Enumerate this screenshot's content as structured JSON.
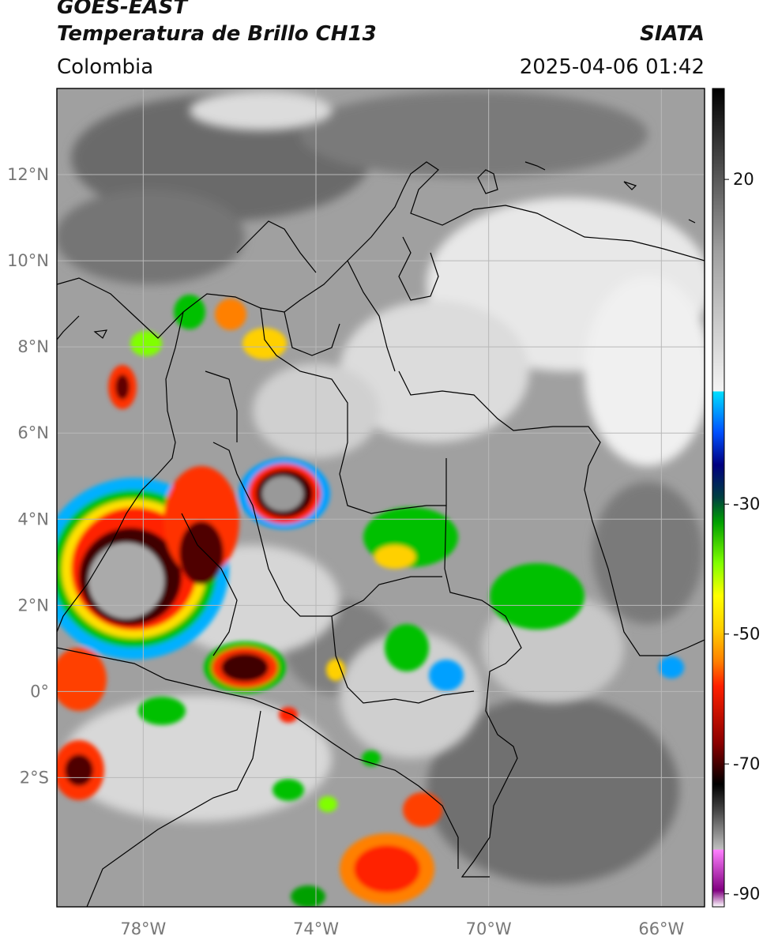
{
  "header": {
    "satellite": "GOES-EAST",
    "product": "Temperatura de Brillo CH13",
    "region": "Colombia",
    "organization": "SIATA",
    "timestamp": "2025-04-06 01:42"
  },
  "map": {
    "lon_range": [
      -80,
      -65
    ],
    "lat_range": [
      -5,
      14
    ],
    "lon_ticks": [
      {
        "value": -78,
        "label": "78°W"
      },
      {
        "value": -74,
        "label": "74°W"
      },
      {
        "value": -70,
        "label": "70°W"
      },
      {
        "value": -66,
        "label": "66°W"
      }
    ],
    "lat_ticks": [
      {
        "value": 12,
        "label": "12°N"
      },
      {
        "value": 10,
        "label": "10°N"
      },
      {
        "value": 8,
        "label": "8°N"
      },
      {
        "value": 6,
        "label": "6°N"
      },
      {
        "value": 4,
        "label": "4°N"
      },
      {
        "value": 2,
        "label": "2°N"
      },
      {
        "value": 0,
        "label": "0°"
      },
      {
        "value": -2,
        "label": "2°S"
      }
    ],
    "gridlines": true
  },
  "colorbar": {
    "range": [
      -92,
      34
    ],
    "ticks": [
      {
        "value": 20,
        "label": "20"
      },
      {
        "value": -30,
        "label": "-30"
      },
      {
        "value": -50,
        "label": "-50"
      },
      {
        "value": -70,
        "label": "-70"
      },
      {
        "value": -90,
        "label": "-90"
      }
    ]
  },
  "colors": {
    "map_background": "#a0a0a0",
    "grid": "#b8b8b8",
    "boundaries": "#000000"
  }
}
